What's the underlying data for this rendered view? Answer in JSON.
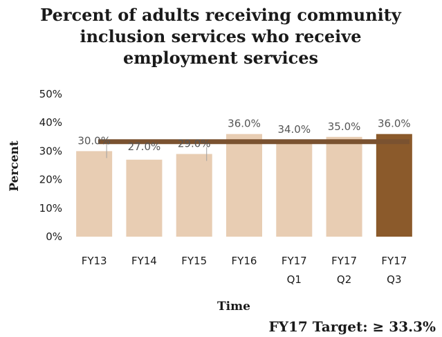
{
  "chart_data": {
    "type": "bar",
    "title_lines": [
      "Percent of adults receiving community",
      "inclusion services who receive",
      "employment services"
    ],
    "categories": [
      [
        "FY13"
      ],
      [
        "FY14"
      ],
      [
        "FY15"
      ],
      [
        "FY16"
      ],
      [
        "FY17",
        "Q1"
      ],
      [
        "FY17",
        "Q2"
      ],
      [
        "FY17",
        "Q3"
      ]
    ],
    "values": [
      30.0,
      27.0,
      29.0,
      36.0,
      34.0,
      35.0,
      36.0
    ],
    "data_labels": [
      "30.0%",
      "27.0%",
      "29.0%",
      "36.0%",
      "34.0%",
      "35.0%",
      "36.0%"
    ],
    "highlight_index": 6,
    "xlabel": "Time",
    "ylabel": "Percent",
    "ylim": [
      0,
      50
    ],
    "yticks": [
      0,
      10,
      20,
      30,
      40,
      50
    ],
    "ytick_labels": [
      "0%",
      "10%",
      "20%",
      "30%",
      "40%",
      "50%"
    ],
    "target": {
      "value": 33.3,
      "label": "FY17 Target: ≥ 33.3%"
    },
    "grid": false,
    "colors": {
      "bar": "#e8cdb3",
      "highlight_bar": "#8b5a2b",
      "target_line": "#7a5230"
    }
  }
}
